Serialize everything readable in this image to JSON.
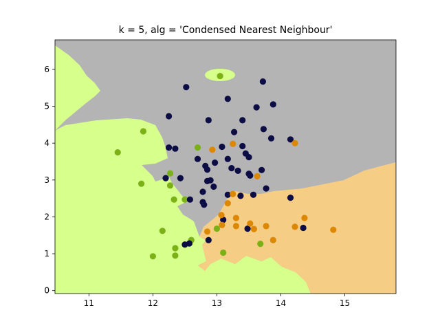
{
  "chart_data": {
    "type": "scatter",
    "title": "k = 5, alg = 'Condensed Nearest Neighbour'",
    "xlabel": "",
    "ylabel": "",
    "xlim": [
      10.47,
      15.8
    ],
    "ylim": [
      -0.08,
      6.8
    ],
    "x_ticks": [
      11,
      12,
      13,
      14,
      15
    ],
    "y_ticks": [
      0,
      1,
      2,
      3,
      4,
      5,
      6
    ],
    "grid": false,
    "legend": "none",
    "region_colors": {
      "class_0": "#d6ff8c",
      "class_1": "#b4b4b4",
      "class_2": "#f6cd84"
    },
    "series": [
      {
        "color": "#7bb117",
        "points": [
          [
            13.05,
            5.82
          ],
          [
            11.85,
            4.32
          ],
          [
            11.45,
            3.75
          ],
          [
            12.7,
            3.88
          ],
          [
            11.82,
            2.9
          ],
          [
            12.27,
            3.18
          ],
          [
            12.27,
            2.85
          ],
          [
            12.33,
            2.47
          ],
          [
            12.5,
            2.47
          ],
          [
            12.15,
            1.62
          ],
          [
            12.6,
            1.37
          ],
          [
            12.35,
            1.15
          ],
          [
            12.0,
            0.93
          ],
          [
            12.35,
            0.95
          ],
          [
            13.0,
            1.68
          ],
          [
            13.1,
            1.03
          ],
          [
            13.68,
            1.27
          ]
        ]
      },
      {
        "color": "#0d0d45",
        "points": [
          [
            12.52,
            5.52
          ],
          [
            13.72,
            5.67
          ],
          [
            13.17,
            5.2
          ],
          [
            13.88,
            5.05
          ],
          [
            13.62,
            4.97
          ],
          [
            12.25,
            4.73
          ],
          [
            12.87,
            4.62
          ],
          [
            13.4,
            4.62
          ],
          [
            13.73,
            4.38
          ],
          [
            13.27,
            4.3
          ],
          [
            13.85,
            4.13
          ],
          [
            14.15,
            4.1
          ],
          [
            12.25,
            3.88
          ],
          [
            12.35,
            3.85
          ],
          [
            13.08,
            3.9
          ],
          [
            13.4,
            3.92
          ],
          [
            13.45,
            3.72
          ],
          [
            13.5,
            3.62
          ],
          [
            12.7,
            3.57
          ],
          [
            13.17,
            3.57
          ],
          [
            12.82,
            3.38
          ],
          [
            12.97,
            3.47
          ],
          [
            12.85,
            3.28
          ],
          [
            13.23,
            3.32
          ],
          [
            13.33,
            3.25
          ],
          [
            13.7,
            3.27
          ],
          [
            12.2,
            3.05
          ],
          [
            12.43,
            3.05
          ],
          [
            12.85,
            2.97
          ],
          [
            12.9,
            2.99
          ],
          [
            13.5,
            3.17
          ],
          [
            13.52,
            3.12
          ],
          [
            12.95,
            2.82
          ],
          [
            12.78,
            2.68
          ],
          [
            13.77,
            2.77
          ],
          [
            12.58,
            2.47
          ],
          [
            12.78,
            2.4
          ],
          [
            12.8,
            2.33
          ],
          [
            13.17,
            2.6
          ],
          [
            13.37,
            2.57
          ],
          [
            13.57,
            2.6
          ],
          [
            14.15,
            2.52
          ],
          [
            13.1,
            1.92
          ],
          [
            12.5,
            1.25
          ],
          [
            12.57,
            1.28
          ],
          [
            12.87,
            1.37
          ],
          [
            13.48,
            1.68
          ],
          [
            14.35,
            1.7
          ]
        ]
      },
      {
        "color": "#dd8805",
        "points": [
          [
            12.93,
            3.82
          ],
          [
            13.25,
            3.98
          ],
          [
            14.22,
            4.0
          ],
          [
            13.63,
            3.1
          ],
          [
            13.25,
            2.62
          ],
          [
            13.17,
            2.37
          ],
          [
            13.07,
            2.05
          ],
          [
            13.3,
            1.97
          ],
          [
            12.85,
            1.6
          ],
          [
            13.08,
            1.78
          ],
          [
            13.3,
            1.75
          ],
          [
            13.52,
            1.82
          ],
          [
            13.58,
            1.67
          ],
          [
            13.77,
            1.75
          ],
          [
            14.22,
            1.73
          ],
          [
            14.37,
            1.97
          ],
          [
            13.88,
            1.37
          ],
          [
            14.82,
            1.65
          ]
        ]
      }
    ]
  }
}
